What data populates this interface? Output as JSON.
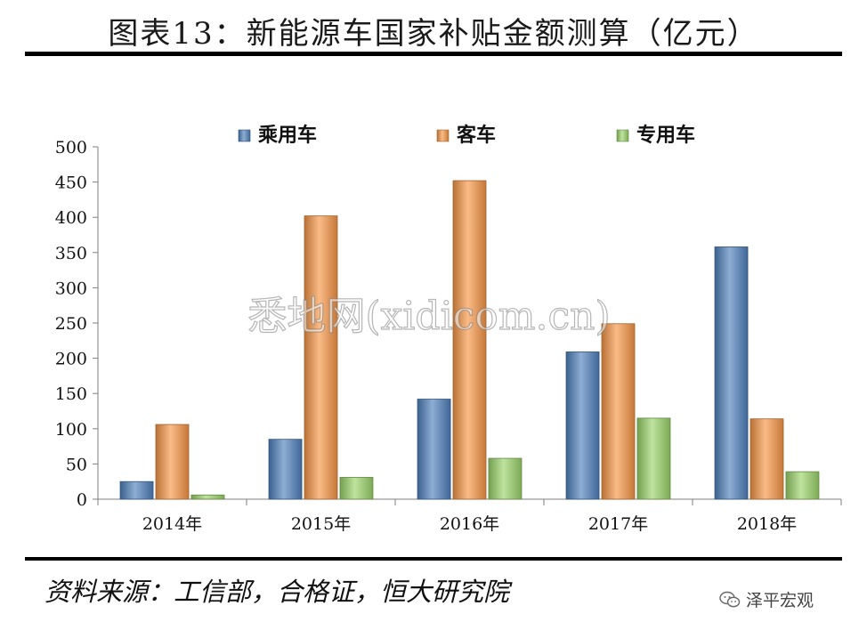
{
  "title": "图表13：新能源车国家补贴金额测算（亿元）",
  "source": "资料来源：工信部，合格证，恒大研究院",
  "watermark": "悉地网(xidicom.cn)",
  "brand": {
    "name": "泽平宏观",
    "icon": "wechat-icon"
  },
  "chart_data": {
    "type": "bar",
    "categories": [
      "2014年",
      "2015年",
      "2016年",
      "2017年",
      "2018年"
    ],
    "series": [
      {
        "name": "乘用车",
        "color": "#4f81bd",
        "values": [
          25,
          85,
          142,
          209,
          358
        ]
      },
      {
        "name": "客车",
        "color": "#f79646",
        "values": [
          106,
          402,
          452,
          249,
          114
        ]
      },
      {
        "name": "专用车",
        "color": "#9bd46a",
        "values": [
          6,
          31,
          58,
          115,
          39
        ]
      }
    ],
    "ylim": [
      0,
      500
    ],
    "yticks": [
      0,
      50,
      100,
      150,
      200,
      250,
      300,
      350,
      400,
      450,
      500
    ],
    "grid": false,
    "legend_position": "top-center"
  }
}
